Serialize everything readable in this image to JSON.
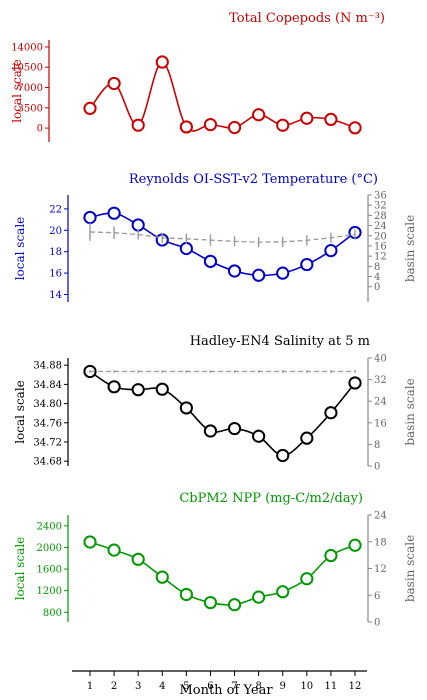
{
  "chart_data": [
    {
      "type": "line",
      "title": "Total Copepods (N m⁻³)",
      "color": "#cc0000",
      "ylabel": "local scale",
      "right_label": "",
      "y_ticks": [
        0,
        3500,
        7000,
        10500,
        14000
      ],
      "y_tick_labels": [
        "0",
        "3500",
        "7000",
        "10500",
        "14000"
      ],
      "ylim": [
        -2400,
        15200
      ],
      "right_ticks": [],
      "right_tick_labels": [],
      "right_ylim": null,
      "x": [
        1,
        2,
        3,
        4,
        5,
        6,
        7,
        8,
        9,
        10,
        11,
        12
      ],
      "series": [
        {
          "values": [
            3400,
            7700,
            500,
            11400,
            200,
            600,
            100,
            2300,
            500,
            1700,
            1500,
            50
          ],
          "color": "#cc0000",
          "style": "solid",
          "marker": "circle"
        }
      ],
      "grid": false
    },
    {
      "type": "line",
      "title": "Reynolds OI-SST-v2 Temperature (°C)",
      "color": "#0000cc",
      "ylabel": "local scale",
      "right_label": "basin scale",
      "y_ticks": [
        14,
        16,
        18,
        20,
        22
      ],
      "y_tick_labels": [
        "14",
        "16",
        "18",
        "20",
        "22"
      ],
      "ylim": [
        13.3,
        23.3
      ],
      "right_ticks": [
        0,
        4,
        8,
        12,
        16,
        20,
        24,
        28,
        32,
        36
      ],
      "right_tick_labels": [
        "0",
        "4",
        "8",
        "12",
        "16",
        "20",
        "24",
        "28",
        "32",
        "36"
      ],
      "right_ylim": [
        -6,
        36
      ],
      "x": [
        1,
        2,
        3,
        4,
        5,
        6,
        7,
        8,
        9,
        10,
        11,
        12
      ],
      "series": [
        {
          "values": [
            21.2,
            21.6,
            20.5,
            19.1,
            18.3,
            17.1,
            16.2,
            15.8,
            16.0,
            16.8,
            18.1,
            19.8
          ],
          "color": "#0000cc",
          "style": "solid",
          "marker": "circle",
          "axis": "left"
        },
        {
          "values": [
            21.5,
            21.2,
            20.5,
            19.2,
            18.8,
            18.3,
            17.8,
            17.5,
            17.6,
            18.2,
            19.2,
            20.5
          ],
          "error": [
            3.5,
            2.5,
            2.0,
            2.0,
            2.0,
            2.2,
            2.0,
            2.0,
            2.0,
            2.0,
            2.0,
            2.0
          ],
          "color": "#999999",
          "style": "dashed",
          "marker": "none",
          "axis": "right"
        }
      ],
      "grid": false
    },
    {
      "type": "line",
      "title": "Hadley-EN4 Salinity at 5 m",
      "color": "#000000",
      "ylabel": "local scale",
      "right_label": "basin scale",
      "y_ticks": [
        34.68,
        34.72,
        34.76,
        34.8,
        34.84,
        34.88
      ],
      "y_tick_labels": [
        "34.68",
        "34.72",
        "34.76",
        "34.80",
        "34.84",
        "34.88"
      ],
      "ylim": [
        34.67,
        34.895
      ],
      "right_ticks": [
        0,
        8,
        16,
        24,
        32,
        40
      ],
      "right_tick_labels": [
        "0",
        "8",
        "16",
        "24",
        "32",
        "40"
      ],
      "right_ylim": [
        0,
        40
      ],
      "x": [
        1,
        2,
        3,
        4,
        5,
        6,
        7,
        8,
        9,
        10,
        11,
        12
      ],
      "series": [
        {
          "values": [
            34.867,
            34.835,
            34.829,
            34.83,
            34.791,
            34.743,
            34.748,
            34.732,
            34.692,
            34.728,
            34.781,
            34.843
          ],
          "color": "#000000",
          "style": "solid",
          "marker": "circle",
          "axis": "left"
        },
        {
          "values": [
            35.0,
            35.0,
            35.0,
            35.0,
            35.0,
            35.0,
            35.0,
            35.0,
            35.0,
            35.0,
            35.0,
            35.0
          ],
          "error": [
            0.5,
            0.5,
            0.5,
            0.5,
            0.5,
            0.5,
            0.5,
            0.5,
            0.5,
            0.5,
            0.5,
            0.5
          ],
          "color": "#999999",
          "style": "dashed",
          "marker": "none",
          "axis": "right"
        }
      ],
      "grid": false
    },
    {
      "type": "line",
      "title": "CbPM2 NPP (mg-C/m2/day)",
      "color": "#009900",
      "ylabel": "local scale",
      "right_label": "basin scale",
      "y_ticks": [
        800,
        1200,
        1600,
        2000,
        2400
      ],
      "y_tick_labels": [
        "800",
        "1200",
        "1600",
        "2000",
        "2400"
      ],
      "ylim": [
        620,
        2600
      ],
      "right_ticks": [
        0,
        6,
        12,
        18,
        24
      ],
      "right_tick_labels": [
        "0",
        "6",
        "12",
        "18",
        "24"
      ],
      "right_ylim": [
        0,
        24
      ],
      "x": [
        1,
        2,
        3,
        4,
        5,
        6,
        7,
        8,
        9,
        10,
        11,
        12
      ],
      "series": [
        {
          "values": [
            2100,
            1950,
            1780,
            1450,
            1130,
            980,
            940,
            1080,
            1180,
            1420,
            1850,
            2040
          ],
          "color": "#009900",
          "style": "solid",
          "marker": "circle",
          "axis": "left"
        }
      ],
      "grid": false
    }
  ],
  "x_axis": {
    "label": "Month of Year",
    "ticks": [
      "1",
      "2",
      "3",
      "4",
      "5",
      "6",
      "7",
      "8",
      "9",
      "10",
      "11",
      "12"
    ]
  }
}
